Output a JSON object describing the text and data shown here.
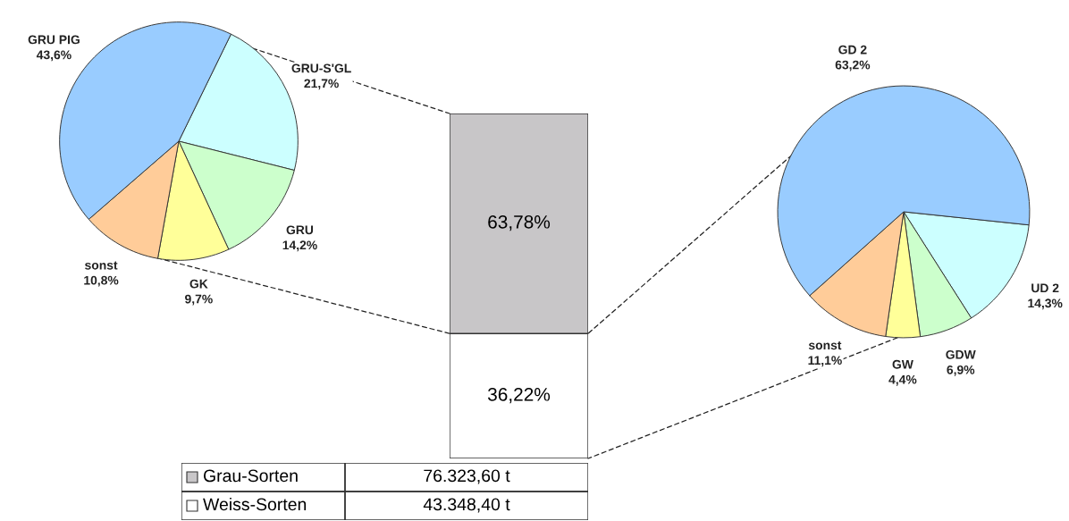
{
  "chart_data": [
    {
      "type": "pie",
      "categories": [
        "GRU-S'GL",
        "GRU",
        "GK",
        "sonst",
        "GRU PIG"
      ],
      "values": [
        21.7,
        14.2,
        9.7,
        10.8,
        43.6
      ],
      "value_labels": [
        "21,7%",
        "14,2%",
        "9,7%",
        "10,8%",
        "43,6%"
      ],
      "colors": [
        "#ccffff",
        "#ccffcc",
        "#ffff99",
        "#ffcc99",
        "#99ccff"
      ]
    },
    {
      "type": "bar",
      "stacked": true,
      "categories": [
        null
      ],
      "legend": "bottom",
      "series": [
        {
          "name": "Weiss-Sorten",
          "color": "#ffffff",
          "values": [
            36.22
          ],
          "value_labels": [
            "36,22%"
          ]
        },
        {
          "name": "Grau-Sorten",
          "color": "#c8c6c8",
          "values": [
            63.78
          ],
          "value_labels": [
            "63,78%"
          ]
        }
      ],
      "annotations": [
        "43.348,40 t",
        "76.323,60 t"
      ]
    },
    {
      "type": "pie",
      "categories": [
        "UD 2",
        "GDW",
        "GW",
        "sonst",
        "GD 2"
      ],
      "values": [
        14.3,
        6.9,
        4.4,
        11.1,
        63.2
      ],
      "value_labels": [
        "14,3%",
        "6,9%",
        "4,4%",
        "11,1%",
        "63,2%"
      ],
      "colors": [
        "#ccffff",
        "#ccffcc",
        "#ffff99",
        "#ffcc99",
        "#99ccff"
      ]
    }
  ]
}
